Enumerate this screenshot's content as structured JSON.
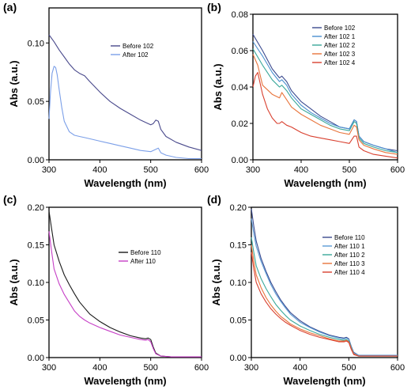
{
  "chart_data": [
    {
      "type": "line",
      "panel_label": "(a)",
      "xlabel": "Wavelength (nm)",
      "ylabel": "Abs (a.u.)",
      "xlim": [
        300,
        600
      ],
      "ylim": [
        0,
        0.13
      ],
      "xticks": [
        300,
        400,
        500,
        600
      ],
      "yticks": [
        0.0,
        0.05,
        0.1
      ],
      "ytick_labels": [
        "0.00",
        "0.05",
        "0.10"
      ],
      "grid": false,
      "legend_position": "center-right",
      "series": [
        {
          "name": "Before 102",
          "color": "#4a4a8c",
          "x": [
            300,
            310,
            320,
            330,
            340,
            350,
            360,
            370,
            380,
            400,
            420,
            440,
            460,
            480,
            490,
            500,
            505,
            510,
            515,
            520,
            530,
            550,
            575,
            600
          ],
          "y": [
            0.107,
            0.101,
            0.094,
            0.088,
            0.082,
            0.077,
            0.074,
            0.072,
            0.067,
            0.058,
            0.05,
            0.044,
            0.039,
            0.034,
            0.032,
            0.03,
            0.031,
            0.034,
            0.033,
            0.026,
            0.02,
            0.015,
            0.011,
            0.008
          ]
        },
        {
          "name": "After 102",
          "color": "#7b9fe8",
          "x": [
            300,
            303,
            306,
            310,
            313,
            316,
            320,
            325,
            330,
            340,
            350,
            360,
            370,
            380,
            400,
            420,
            440,
            460,
            480,
            500,
            505,
            510,
            515,
            520,
            530,
            550,
            575,
            600
          ],
          "y": [
            0.035,
            0.058,
            0.074,
            0.08,
            0.079,
            0.073,
            0.06,
            0.045,
            0.033,
            0.024,
            0.021,
            0.02,
            0.019,
            0.018,
            0.016,
            0.014,
            0.012,
            0.01,
            0.008,
            0.007,
            0.008,
            0.009,
            0.01,
            0.006,
            0.004,
            0.002,
            0.001,
            0.001
          ]
        }
      ]
    },
    {
      "type": "line",
      "panel_label": "(b)",
      "xlabel": "Wavelength (nm)",
      "ylabel": "Abs (a.u.)",
      "xlim": [
        300,
        600
      ],
      "ylim": [
        0,
        0.08
      ],
      "xticks": [
        300,
        400,
        500,
        600
      ],
      "yticks": [
        0.0,
        0.02,
        0.04,
        0.06,
        0.08
      ],
      "ytick_labels": [
        "0.00",
        "0.02",
        "0.04",
        "0.06",
        "0.08"
      ],
      "grid": false,
      "legend_position": "top-right",
      "series": [
        {
          "name": "Before 102",
          "color": "#3b4a8f",
          "x": [
            300,
            320,
            340,
            355,
            360,
            370,
            380,
            400,
            420,
            440,
            460,
            480,
            500,
            510,
            515,
            520,
            530,
            550,
            575,
            600
          ],
          "y": [
            0.069,
            0.06,
            0.05,
            0.045,
            0.046,
            0.043,
            0.038,
            0.032,
            0.028,
            0.024,
            0.021,
            0.018,
            0.017,
            0.022,
            0.021,
            0.013,
            0.01,
            0.008,
            0.006,
            0.005
          ]
        },
        {
          "name": "After 102 1",
          "color": "#4a90d0",
          "x": [
            300,
            320,
            340,
            355,
            360,
            370,
            380,
            400,
            420,
            440,
            460,
            480,
            500,
            510,
            515,
            520,
            530,
            550,
            575,
            600
          ],
          "y": [
            0.065,
            0.057,
            0.048,
            0.043,
            0.044,
            0.041,
            0.036,
            0.03,
            0.026,
            0.023,
            0.02,
            0.018,
            0.017,
            0.022,
            0.021,
            0.013,
            0.01,
            0.008,
            0.006,
            0.004
          ]
        },
        {
          "name": "After 102 2",
          "color": "#3aa89a",
          "x": [
            300,
            320,
            340,
            355,
            360,
            370,
            380,
            400,
            420,
            440,
            460,
            480,
            500,
            510,
            515,
            520,
            530,
            550,
            575,
            600
          ],
          "y": [
            0.061,
            0.052,
            0.044,
            0.04,
            0.041,
            0.038,
            0.034,
            0.028,
            0.025,
            0.022,
            0.019,
            0.017,
            0.016,
            0.021,
            0.02,
            0.012,
            0.009,
            0.007,
            0.005,
            0.004
          ]
        },
        {
          "name": "After 102 3",
          "color": "#e8743b",
          "x": [
            300,
            310,
            320,
            340,
            355,
            360,
            370,
            380,
            400,
            420,
            440,
            460,
            480,
            500,
            510,
            515,
            520,
            530,
            550,
            575,
            600
          ],
          "y": [
            0.058,
            0.052,
            0.041,
            0.036,
            0.034,
            0.037,
            0.033,
            0.029,
            0.025,
            0.022,
            0.019,
            0.017,
            0.015,
            0.014,
            0.019,
            0.018,
            0.011,
            0.008,
            0.006,
            0.004,
            0.003
          ]
        },
        {
          "name": "After 102 4",
          "color": "#d9402f",
          "x": [
            300,
            305,
            310,
            320,
            330,
            340,
            350,
            355,
            360,
            370,
            380,
            400,
            420,
            440,
            460,
            480,
            500,
            510,
            515,
            520,
            530,
            550,
            575,
            600
          ],
          "y": [
            0.04,
            0.046,
            0.048,
            0.036,
            0.028,
            0.023,
            0.02,
            0.02,
            0.021,
            0.019,
            0.018,
            0.015,
            0.013,
            0.012,
            0.011,
            0.01,
            0.009,
            0.013,
            0.013,
            0.007,
            0.005,
            0.003,
            0.002,
            0.001
          ]
        }
      ]
    },
    {
      "type": "line",
      "panel_label": "(c)",
      "xlabel": "Wavelength (nm)",
      "ylabel": "Abs (a.u.)",
      "xlim": [
        300,
        600
      ],
      "ylim": [
        0,
        0.2
      ],
      "xticks": [
        300,
        400,
        500,
        600
      ],
      "yticks": [
        0.0,
        0.05,
        0.1,
        0.15,
        0.2
      ],
      "ytick_labels": [
        "0.00",
        "0.05",
        "0.10",
        "0.15",
        "0.20"
      ],
      "grid": false,
      "legend_position": "center-right",
      "series": [
        {
          "name": "Before 110",
          "color": "#1a1a1a",
          "x": [
            300,
            305,
            310,
            320,
            330,
            340,
            350,
            360,
            370,
            380,
            400,
            420,
            440,
            460,
            480,
            490,
            495,
            500,
            505,
            510,
            520,
            540,
            560,
            580,
            600
          ],
          "y": [
            0.195,
            0.172,
            0.15,
            0.128,
            0.11,
            0.097,
            0.085,
            0.074,
            0.066,
            0.058,
            0.048,
            0.04,
            0.034,
            0.029,
            0.026,
            0.025,
            0.026,
            0.024,
            0.014,
            0.006,
            0.002,
            0.001,
            0.001,
            0.001,
            0.001
          ]
        },
        {
          "name": "After 110",
          "color": "#c63fc6",
          "x": [
            300,
            305,
            310,
            320,
            330,
            340,
            350,
            360,
            370,
            380,
            400,
            420,
            440,
            460,
            480,
            490,
            495,
            500,
            505,
            510,
            520,
            540,
            560,
            580,
            600
          ],
          "y": [
            0.168,
            0.142,
            0.118,
            0.098,
            0.084,
            0.073,
            0.062,
            0.055,
            0.05,
            0.046,
            0.04,
            0.035,
            0.03,
            0.027,
            0.024,
            0.023,
            0.024,
            0.021,
            0.012,
            0.005,
            0.002,
            0.001,
            0.001,
            0.001,
            0.001
          ]
        }
      ]
    },
    {
      "type": "line",
      "panel_label": "(d)",
      "xlabel": "Wavelength (nm)",
      "ylabel": "Abs (a.u.)",
      "xlim": [
        300,
        600
      ],
      "ylim": [
        0,
        0.2
      ],
      "xticks": [
        300,
        400,
        500,
        600
      ],
      "yticks": [
        0.0,
        0.05,
        0.1,
        0.15,
        0.2
      ],
      "ytick_labels": [
        "0.00",
        "0.05",
        "0.10",
        "0.15",
        "0.20"
      ],
      "grid": false,
      "legend_position": "top-right",
      "series": [
        {
          "name": "Before 110",
          "color": "#3b4a8f",
          "x": [
            300,
            305,
            310,
            320,
            330,
            340,
            350,
            360,
            370,
            380,
            400,
            420,
            440,
            460,
            480,
            490,
            495,
            500,
            505,
            510,
            520,
            540,
            560,
            580,
            600
          ],
          "y": [
            0.198,
            0.175,
            0.155,
            0.132,
            0.115,
            0.1,
            0.088,
            0.077,
            0.068,
            0.06,
            0.049,
            0.041,
            0.035,
            0.03,
            0.027,
            0.026,
            0.027,
            0.025,
            0.015,
            0.007,
            0.003,
            0.003,
            0.003,
            0.003,
            0.003
          ]
        },
        {
          "name": "After 110 1",
          "color": "#5b9bd5",
          "x": [
            300,
            305,
            310,
            320,
            330,
            340,
            350,
            360,
            370,
            380,
            400,
            420,
            440,
            460,
            480,
            490,
            495,
            500,
            505,
            510,
            520,
            540,
            560,
            580,
            600
          ],
          "y": [
            0.185,
            0.165,
            0.148,
            0.128,
            0.112,
            0.097,
            0.085,
            0.075,
            0.066,
            0.058,
            0.047,
            0.04,
            0.034,
            0.029,
            0.026,
            0.025,
            0.026,
            0.024,
            0.014,
            0.006,
            0.003,
            0.003,
            0.003,
            0.003,
            0.003
          ]
        },
        {
          "name": "After 110 2",
          "color": "#3aa89a",
          "x": [
            300,
            305,
            310,
            320,
            330,
            340,
            350,
            360,
            370,
            380,
            400,
            420,
            440,
            460,
            480,
            490,
            495,
            500,
            505,
            510,
            520,
            540,
            560,
            580,
            600
          ],
          "y": [
            0.16,
            0.14,
            0.122,
            0.105,
            0.092,
            0.081,
            0.071,
            0.063,
            0.056,
            0.05,
            0.042,
            0.036,
            0.031,
            0.027,
            0.024,
            0.023,
            0.024,
            0.022,
            0.013,
            0.005,
            0.002,
            0.002,
            0.002,
            0.002,
            0.002
          ]
        },
        {
          "name": "After 110 3",
          "color": "#e8743b",
          "x": [
            300,
            305,
            310,
            320,
            330,
            340,
            350,
            360,
            370,
            380,
            400,
            420,
            440,
            460,
            480,
            490,
            495,
            500,
            505,
            510,
            520,
            540,
            560,
            580,
            600
          ],
          "y": [
            0.15,
            0.128,
            0.11,
            0.093,
            0.08,
            0.07,
            0.062,
            0.055,
            0.05,
            0.045,
            0.038,
            0.033,
            0.029,
            0.025,
            0.022,
            0.022,
            0.023,
            0.021,
            0.012,
            0.005,
            0.002,
            0.002,
            0.002,
            0.002,
            0.002
          ]
        },
        {
          "name": "After 110 4",
          "color": "#d9402f",
          "x": [
            300,
            305,
            310,
            320,
            330,
            340,
            350,
            360,
            370,
            380,
            400,
            420,
            440,
            460,
            480,
            490,
            495,
            500,
            505,
            510,
            520,
            540,
            560,
            580,
            600
          ],
          "y": [
            0.14,
            0.118,
            0.1,
            0.085,
            0.074,
            0.065,
            0.058,
            0.052,
            0.047,
            0.043,
            0.036,
            0.031,
            0.027,
            0.024,
            0.021,
            0.021,
            0.022,
            0.02,
            0.011,
            0.004,
            0.002,
            0.002,
            0.002,
            0.002,
            0.002
          ]
        }
      ]
    }
  ]
}
